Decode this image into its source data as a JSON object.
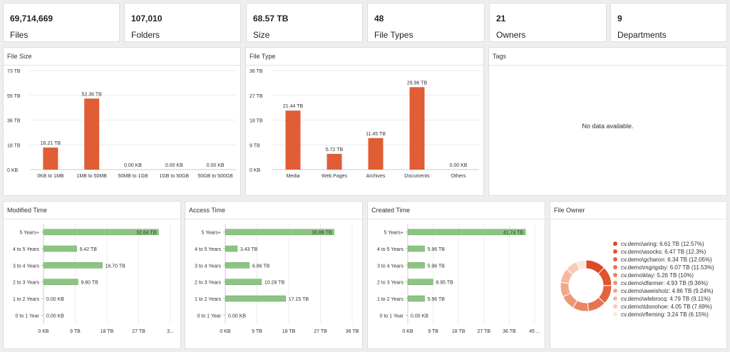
{
  "stats": [
    {
      "value": "69,714,669",
      "label": "Files"
    },
    {
      "value": "107,010",
      "label": "Folders"
    },
    {
      "value": "68.57 TB",
      "label": "Size"
    },
    {
      "value": "48",
      "label": "File Types"
    },
    {
      "value": "21",
      "label": "Owners"
    },
    {
      "value": "9",
      "label": "Departments"
    }
  ],
  "panels": {
    "file_size": "File Size",
    "file_type": "File Type",
    "tags": "Tags",
    "modified_time": "Modified Time",
    "access_time": "Access Time",
    "created_time": "Created Time",
    "file_owner": "File Owner"
  },
  "tags": {
    "empty_message": "No data available."
  },
  "colors": {
    "bar": "#e05d35",
    "hbar": "#8cc483",
    "hbar_border": "#6aa85f"
  },
  "chart_data": [
    {
      "id": "file_size",
      "type": "bar",
      "categories": [
        "0KB to 1MB",
        "1MB to 50MB",
        "50MB to 1GB",
        "1GB to 50GB",
        "50GB to 500GB"
      ],
      "values": [
        16.21,
        52.36,
        0,
        0,
        0
      ],
      "labels": [
        "16.21 TB",
        "52.36 TB",
        "0.00 KB",
        "0.00 KB",
        "0.00 KB"
      ],
      "ticks": [
        "0 KB",
        "18 TB",
        "36 TB",
        "55 TB",
        "73 TB"
      ],
      "ylim": [
        0,
        73
      ]
    },
    {
      "id": "file_type",
      "type": "bar",
      "categories": [
        "Media",
        "Web Pages",
        "Archives",
        "Documents",
        "Others"
      ],
      "values": [
        21.44,
        5.72,
        11.45,
        29.96,
        0
      ],
      "labels": [
        "21.44 TB",
        "5.72 TB",
        "11.45 TB",
        "29.96 TB",
        "0.00 KB"
      ],
      "ticks": [
        "0 KB",
        "9 TB",
        "18 TB",
        "27 TB",
        "36 TB"
      ],
      "ylim": [
        0,
        36
      ]
    },
    {
      "id": "modified_time",
      "type": "bar",
      "orientation": "horizontal",
      "categories": [
        "5 Years+",
        "4 to 5 Years",
        "3 to 4 Years",
        "2 to 3 Years",
        "1 to 2 Years",
        "0 to 1 Year"
      ],
      "values": [
        32.64,
        9.42,
        16.7,
        9.8,
        0,
        0
      ],
      "labels": [
        "32.64 TB",
        "9.42 TB",
        "16.70 TB",
        "9.80 TB",
        "0.00 KB",
        "0.00 KB"
      ],
      "ticks": [
        "0 KB",
        "9 TB",
        "18 TB",
        "27 TB",
        "3..."
      ],
      "xlim": [
        0,
        36
      ]
    },
    {
      "id": "access_time",
      "type": "bar",
      "orientation": "horizontal",
      "categories": [
        "5 Years+",
        "4 to 5 Years",
        "3 to 4 Years",
        "2 to 3 Years",
        "1 to 2 Years",
        "0 to 1 Year"
      ],
      "values": [
        30.86,
        3.43,
        6.86,
        10.28,
        17.15,
        0
      ],
      "labels": [
        "30.86 TB",
        "3.43 TB",
        "6.86 TB",
        "10.28 TB",
        "17.15 TB",
        "0.00 KB"
      ],
      "ticks": [
        "0 KB",
        "9 TB",
        "18 TB",
        "27 TB",
        "36 TB"
      ],
      "xlim": [
        0,
        36
      ]
    },
    {
      "id": "created_time",
      "type": "bar",
      "orientation": "horizontal",
      "categories": [
        "5 Years+",
        "4 to 5 Years",
        "3 to 4 Years",
        "2 to 3 Years",
        "1 to 2 Years",
        "0 to 1 Year"
      ],
      "values": [
        41.74,
        5.96,
        5.96,
        8.95,
        5.96,
        0
      ],
      "labels": [
        "41.74 TB",
        "5.96 TB",
        "5.96 TB",
        "8.95 TB",
        "5.96 TB",
        "0.00 KB"
      ],
      "ticks": [
        "0 KB",
        "9 TB",
        "18 TB",
        "27 TB",
        "36 TB",
        "45 ..."
      ],
      "xlim": [
        0,
        45
      ]
    },
    {
      "id": "file_owner",
      "type": "pie",
      "donut": true,
      "slices": [
        {
          "label": "cv.demo\\aring: 6.61 TB (12.57%)",
          "value": 12.57,
          "color": "#d94a25"
        },
        {
          "label": "cv.demo\\asocks: 6.47 TB (12.3%)",
          "value": 12.3,
          "color": "#de5630"
        },
        {
          "label": "cv.demo\\gcharon: 6.34 TB (12.05%)",
          "value": 12.05,
          "color": "#e2653f"
        },
        {
          "label": "cv.demo\\mgrigsby: 6.07 TB (11.53%)",
          "value": 11.53,
          "color": "#e7744f"
        },
        {
          "label": "cv.demo\\klay: 5.26 TB (10%)",
          "value": 10,
          "color": "#eb8562"
        },
        {
          "label": "cv.demo\\dfarmer: 4.93 TB (9.36%)",
          "value": 9.36,
          "color": "#ef9676"
        },
        {
          "label": "cv.demo\\aweisholz: 4.86 TB (9.24%)",
          "value": 9.24,
          "color": "#f2a78b"
        },
        {
          "label": "cv.demo\\wlebrocq: 4.79 TB (9.11%)",
          "value": 9.11,
          "color": "#f5b9a1"
        },
        {
          "label": "cv.demo\\tdonohoe: 4.05 TB (7.69%)",
          "value": 7.69,
          "color": "#f7cbb6"
        },
        {
          "label": "cv.demo\\rfleming: 3.24 TB (6.15%)",
          "value": 6.15,
          "color": "#fbe8dc"
        }
      ]
    }
  ]
}
